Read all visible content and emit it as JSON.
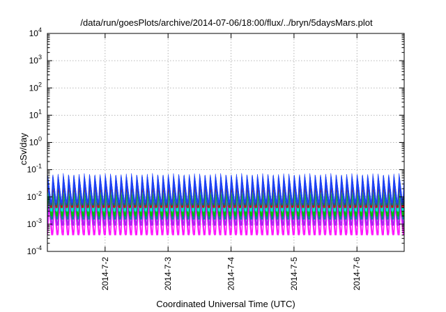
{
  "chart_data": {
    "type": "area",
    "title": "/data/run/goesPlots/archive/2014-07-06/18:00/flux/../bryn/5daysMars.plot",
    "xlabel": "Coordinated Universal Time (UTC)",
    "ylabel": "cSv/day",
    "y_scale": "log",
    "ylim": [
      0.0001,
      10000
    ],
    "y_ticks": [
      {
        "value": 0.0001,
        "base": "10",
        "exp": "-4"
      },
      {
        "value": 0.001,
        "base": "10",
        "exp": "-3"
      },
      {
        "value": 0.01,
        "base": "10",
        "exp": "-2"
      },
      {
        "value": 0.1,
        "base": "10",
        "exp": "-1"
      },
      {
        "value": 1,
        "base": "10",
        "exp": "0"
      },
      {
        "value": 10,
        "base": "10",
        "exp": "1"
      },
      {
        "value": 100,
        "base": "10",
        "exp": "2"
      },
      {
        "value": 1000,
        "base": "10",
        "exp": "3"
      },
      {
        "value": 10000,
        "base": "10",
        "exp": "4"
      }
    ],
    "xlim": [
      "2014-07-01T02:00",
      "2014-07-06T18:00"
    ],
    "x_ticks": [
      {
        "value": "2014-07-02T00:00",
        "label": "2014-7-2"
      },
      {
        "value": "2014-07-03T00:00",
        "label": "2014-7-3"
      },
      {
        "value": "2014-07-04T00:00",
        "label": "2014-7-4"
      },
      {
        "value": "2014-07-05T00:00",
        "label": "2014-7-5"
      },
      {
        "value": "2014-07-06T00:00",
        "label": "2014-7-6"
      }
    ],
    "grid": true,
    "oscillation_period_hours": 2,
    "series": [
      {
        "color": "#ff00ff",
        "min": 0.0004,
        "max": 0.012
      },
      {
        "color": "#a020f0",
        "min": 0.0009,
        "max": 0.02
      },
      {
        "color": "#008b8b",
        "min": 0.0015,
        "max": 0.03
      },
      {
        "color": "#00c000",
        "min": 0.002,
        "max": 0.035
      },
      {
        "color": "#00e5ee",
        "min": 0.003,
        "max": 0.045
      },
      {
        "color": "#cd0000",
        "min": 0.004,
        "max": 0.05
      },
      {
        "color": "#0060ad",
        "min": 0.005,
        "max": 0.065
      },
      {
        "color": "#2040ff",
        "min": 0.006,
        "max": 0.075
      }
    ]
  }
}
